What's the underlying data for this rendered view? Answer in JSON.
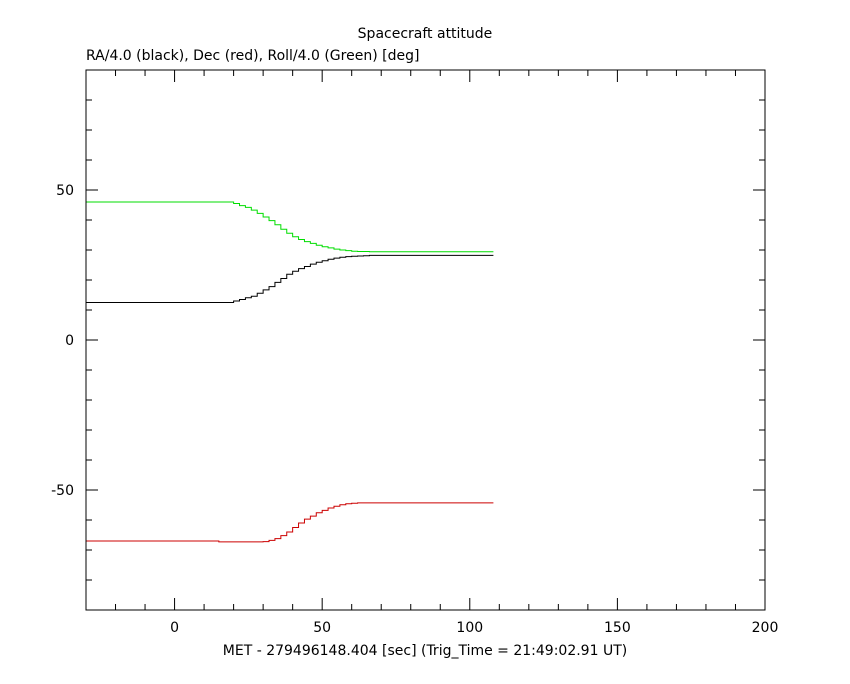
{
  "chart_data": {
    "type": "line",
    "title": "Spacecraft attitude",
    "subtitle": "RA/4.0 (black), Dec (red), Roll/4.0 (Green) [deg]",
    "xlabel": "MET - 279496148.404 [sec] (Trig_Time = 21:49:02.91 UT)",
    "ylabel": "",
    "xlim": [
      -30,
      200
    ],
    "ylim": [
      -90,
      90
    ],
    "x_ticks": [
      0,
      50,
      100,
      150,
      200
    ],
    "y_ticks": [
      -50,
      0,
      50
    ],
    "x_tick_labels": [
      "0",
      "50",
      "100",
      "150",
      "200"
    ],
    "y_tick_labels": [
      "-50",
      "0",
      "50"
    ],
    "grid": false,
    "series": [
      {
        "name": "RA/4.0",
        "color": "#000000",
        "step": true,
        "x": [
          -30,
          18,
          20,
          22,
          24,
          26,
          28,
          30,
          32,
          34,
          36,
          38,
          40,
          42,
          44,
          46,
          48,
          50,
          52,
          54,
          56,
          58,
          60,
          62,
          64,
          66,
          68,
          70,
          108
        ],
        "y": [
          12.5,
          12.5,
          13.0,
          13.5,
          14.1,
          14.6,
          15.6,
          16.7,
          17.8,
          19.2,
          20.5,
          21.9,
          22.9,
          23.8,
          24.5,
          25.3,
          25.9,
          26.4,
          26.9,
          27.3,
          27.6,
          27.8,
          27.9,
          28.0,
          28.1,
          28.2,
          28.2,
          28.2,
          28.2
        ]
      },
      {
        "name": "Dec",
        "color": "#cc0000",
        "step": true,
        "x": [
          -30,
          15,
          30,
          32,
          34,
          36,
          38,
          40,
          42,
          44,
          46,
          48,
          50,
          52,
          54,
          56,
          58,
          60,
          62,
          64,
          66,
          108
        ],
        "y": [
          -67.0,
          -67.3,
          -67.2,
          -66.8,
          -66.2,
          -65.2,
          -64.0,
          -62.5,
          -61.0,
          -59.7,
          -58.7,
          -57.6,
          -56.8,
          -56.0,
          -55.4,
          -54.9,
          -54.6,
          -54.4,
          -54.3,
          -54.3,
          -54.3,
          -54.3
        ]
      },
      {
        "name": "Roll/4.0",
        "color": "#00dd00",
        "step": true,
        "x": [
          -30,
          17,
          20,
          22,
          24,
          26,
          28,
          30,
          32,
          34,
          36,
          38,
          40,
          42,
          44,
          46,
          48,
          50,
          52,
          54,
          56,
          58,
          60,
          62,
          64,
          66,
          108
        ],
        "y": [
          46.0,
          46.0,
          45.5,
          44.8,
          44.2,
          43.3,
          42.2,
          41.0,
          39.8,
          38.4,
          36.9,
          35.6,
          34.4,
          33.5,
          32.8,
          32.2,
          31.6,
          31.1,
          30.7,
          30.3,
          30.0,
          29.8,
          29.6,
          29.5,
          29.5,
          29.4,
          29.4
        ]
      }
    ]
  }
}
